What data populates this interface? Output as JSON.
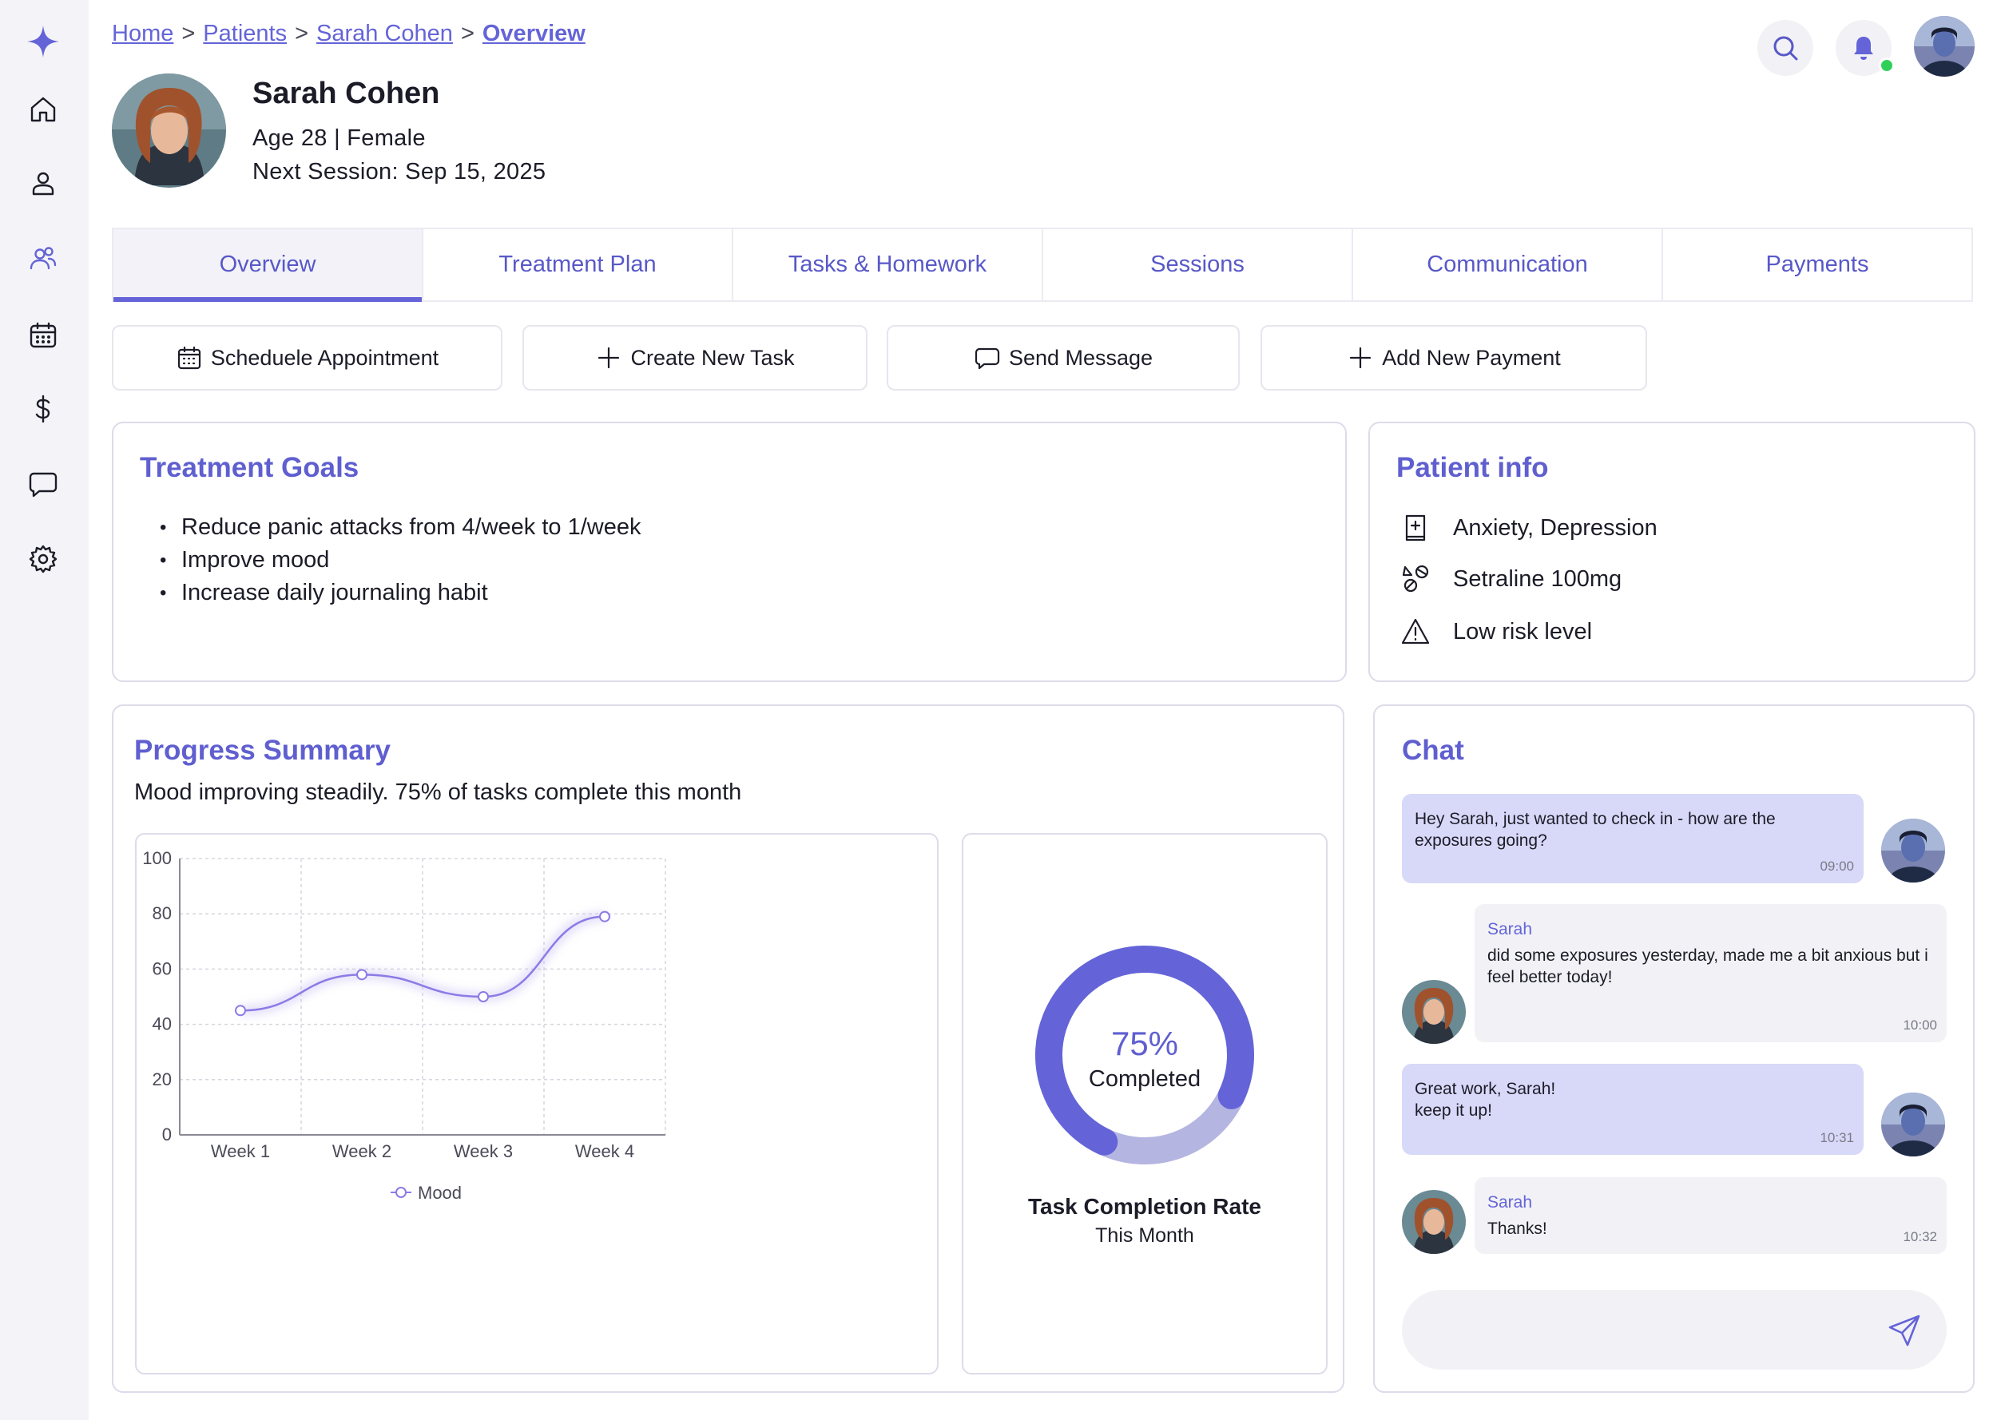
{
  "breadcrumb": {
    "items": [
      "Home",
      "Patients",
      "Sarah Cohen",
      "Overview"
    ],
    "separator": ">"
  },
  "sidebar": {
    "logo": "sparkle-logo",
    "items": [
      "home-icon",
      "user-icon",
      "patients-icon",
      "calendar-icon",
      "dollar-icon",
      "chat-icon",
      "gear-icon"
    ],
    "active": "patients-icon"
  },
  "header_actions": {
    "icons": [
      "search-icon",
      "bell-icon"
    ],
    "notification_dot_color": "#2fd05a"
  },
  "patient": {
    "name": "Sarah Cohen",
    "age_gender": "Age 28 | Female",
    "next_session": "Next Session: Sep 15, 2025"
  },
  "tabs": {
    "items": [
      "Overview",
      "Treatment Plan",
      "Tasks & Homework",
      "Sessions",
      "Communication",
      "Payments"
    ],
    "active": "Overview"
  },
  "actions": {
    "schedule": "Scheduele Appointment",
    "create_task": "Create New Task",
    "send_message": "Send Message",
    "add_payment": "Add New Payment"
  },
  "treatment_goals": {
    "title": "Treatment Goals",
    "items": [
      "Reduce panic attacks from 4/week to 1/week",
      "Improve mood",
      "Increase daily journaling habit"
    ]
  },
  "patient_info": {
    "title": "Patient info",
    "diagnosis": "Anxiety, Depression",
    "medication": "Setraline 100mg",
    "risk": "Low risk level"
  },
  "progress": {
    "title": "Progress Summary",
    "summary": "Mood improving steadily. 75% of tasks complete this month"
  },
  "chart_data": [
    {
      "type": "line",
      "categories": [
        "Week 1",
        "Week 2",
        "Week 3",
        "Week 4"
      ],
      "series": [
        {
          "name": "Mood",
          "values": [
            45,
            58,
            50,
            79
          ]
        }
      ],
      "ylim": [
        0,
        100
      ],
      "yticks": [
        0,
        20,
        40,
        60,
        80,
        100
      ],
      "grid": true,
      "legend": "bottom",
      "color": "#8c7ae6"
    },
    {
      "type": "pie",
      "variant": "donut",
      "center_value": "75%",
      "center_label": "Completed",
      "title": "Task Completion Rate",
      "subtitle": "This Month",
      "values": [
        75,
        25
      ],
      "colors": [
        "#6464d8",
        "#b5b5e2"
      ]
    }
  ],
  "chat": {
    "title": "Chat",
    "messages": [
      {
        "from": "me",
        "text": "Hey Sarah, just wanted to check in - how are the exposures going?",
        "time": "09:00"
      },
      {
        "from": "them",
        "sender": "Sarah",
        "text": "did some exposures yesterday, made me a bit anxious but i feel better today!",
        "time": "10:00"
      },
      {
        "from": "me",
        "text": "Great work, Sarah!\nkeep it up!",
        "time": "10:31"
      },
      {
        "from": "them",
        "sender": "Sarah",
        "text": "Thanks!",
        "time": "10:32"
      }
    ],
    "input_placeholder": ""
  }
}
